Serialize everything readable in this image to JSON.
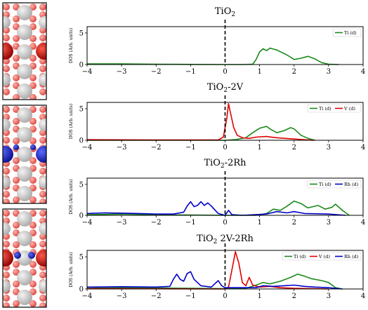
{
  "chart_data": [
    {
      "type": "line",
      "title_main": "TiO",
      "title_sub": "2",
      "title_rest": "",
      "ylabel": "DOS (Arb. units)",
      "xlim": [
        -4,
        4
      ],
      "ylim": [
        0,
        6
      ],
      "xticks": [
        -4,
        -3,
        -2,
        -1,
        0,
        1,
        2,
        3,
        4
      ],
      "yticks": [
        0,
        5
      ],
      "fermi_level": 0,
      "legend_position": "top-right",
      "series": [
        {
          "name": "Ti (d)",
          "color": "#1a8a1a",
          "points": [
            [
              -4,
              0.1
            ],
            [
              -3,
              0.1
            ],
            [
              -2,
              0.05
            ],
            [
              -1,
              0.02
            ],
            [
              0,
              0
            ],
            [
              0.5,
              0
            ],
            [
              0.8,
              0.05
            ],
            [
              0.9,
              0.8
            ],
            [
              1.0,
              2.0
            ],
            [
              1.1,
              2.5
            ],
            [
              1.2,
              2.2
            ],
            [
              1.3,
              2.6
            ],
            [
              1.5,
              2.3
            ],
            [
              1.8,
              1.5
            ],
            [
              2.0,
              0.8
            ],
            [
              2.2,
              1.0
            ],
            [
              2.4,
              1.3
            ],
            [
              2.6,
              0.9
            ],
            [
              2.8,
              0.3
            ],
            [
              3.0,
              0.05
            ],
            [
              3.3,
              0
            ]
          ]
        }
      ]
    },
    {
      "type": "line",
      "title_main": "TiO",
      "title_sub": "2",
      "title_rest": "-2V",
      "ylabel": "DOS (Arb. units)",
      "xlim": [
        -4,
        4
      ],
      "ylim": [
        0,
        6
      ],
      "xticks": [
        -4,
        -3,
        -2,
        -1,
        0,
        1,
        2,
        3,
        4
      ],
      "yticks": [
        0,
        5
      ],
      "fermi_level": 0,
      "legend_position": "top-right",
      "series": [
        {
          "name": "Ti (d)",
          "color": "#1a8a1a",
          "points": [
            [
              -4,
              0
            ],
            [
              0,
              0
            ],
            [
              0.3,
              0.1
            ],
            [
              0.6,
              0.4
            ],
            [
              0.8,
              1.2
            ],
            [
              1.0,
              1.9
            ],
            [
              1.2,
              2.2
            ],
            [
              1.3,
              1.8
            ],
            [
              1.5,
              1.2
            ],
            [
              1.7,
              1.5
            ],
            [
              1.9,
              2.0
            ],
            [
              2.0,
              1.8
            ],
            [
              2.2,
              0.8
            ],
            [
              2.4,
              0.3
            ],
            [
              2.6,
              0
            ]
          ]
        },
        {
          "name": "V (d)",
          "color": "#e00000",
          "points": [
            [
              -4,
              0.1
            ],
            [
              -2,
              0.05
            ],
            [
              -1,
              0.05
            ],
            [
              -0.2,
              0.05
            ],
            [
              -0.05,
              0.5
            ],
            [
              0.05,
              3.5
            ],
            [
              0.1,
              5.8
            ],
            [
              0.15,
              4.5
            ],
            [
              0.25,
              2.0
            ],
            [
              0.35,
              0.8
            ],
            [
              0.5,
              0.4
            ],
            [
              0.7,
              0.3
            ],
            [
              0.9,
              0.5
            ],
            [
              1.2,
              0.6
            ],
            [
              1.5,
              0.4
            ],
            [
              2.0,
              0.2
            ],
            [
              2.4,
              0.05
            ],
            [
              2.6,
              0
            ]
          ]
        }
      ]
    },
    {
      "type": "line",
      "title_main": "TiO",
      "title_sub": "2",
      "title_rest": "-2Rh",
      "ylabel": "DOS (Arb. units)",
      "xlim": [
        -4,
        4
      ],
      "ylim": [
        0,
        6
      ],
      "xticks": [
        -4,
        -3,
        -2,
        -1,
        0,
        1,
        2,
        3,
        4
      ],
      "yticks": [
        0,
        5
      ],
      "fermi_level": 0,
      "legend_position": "top-right",
      "series": [
        {
          "name": "Ti (d)",
          "color": "#1a8a1a",
          "points": [
            [
              -4,
              0.1
            ],
            [
              -3,
              0.2
            ],
            [
              -2,
              0.1
            ],
            [
              -1,
              0.05
            ],
            [
              0,
              0
            ],
            [
              0.9,
              0
            ],
            [
              1.2,
              0.3
            ],
            [
              1.4,
              1.0
            ],
            [
              1.6,
              0.8
            ],
            [
              1.8,
              1.5
            ],
            [
              2.0,
              2.3
            ],
            [
              2.2,
              1.9
            ],
            [
              2.4,
              1.2
            ],
            [
              2.7,
              1.6
            ],
            [
              2.9,
              1.0
            ],
            [
              3.1,
              1.3
            ],
            [
              3.2,
              1.8
            ],
            [
              3.4,
              0.8
            ],
            [
              3.6,
              0
            ]
          ]
        },
        {
          "name": "Rh (d)",
          "color": "#0000c8",
          "points": [
            [
              -4,
              0.3
            ],
            [
              -3.5,
              0.4
            ],
            [
              -3,
              0.35
            ],
            [
              -2.5,
              0.3
            ],
            [
              -2,
              0.2
            ],
            [
              -1.5,
              0.2
            ],
            [
              -1.2,
              0.5
            ],
            [
              -1.1,
              1.5
            ],
            [
              -1.0,
              2.2
            ],
            [
              -0.9,
              1.4
            ],
            [
              -0.8,
              1.6
            ],
            [
              -0.7,
              2.2
            ],
            [
              -0.6,
              1.6
            ],
            [
              -0.5,
              2.0
            ],
            [
              -0.4,
              1.5
            ],
            [
              -0.2,
              0.3
            ],
            [
              0,
              0
            ],
            [
              0.1,
              0.8
            ],
            [
              0.2,
              0.1
            ],
            [
              0.5,
              0
            ],
            [
              1.2,
              0.2
            ],
            [
              1.5,
              0.6
            ],
            [
              1.8,
              0.4
            ],
            [
              2.0,
              0.6
            ],
            [
              2.3,
              0.3
            ],
            [
              3.0,
              0.2
            ],
            [
              3.5,
              0
            ]
          ]
        }
      ]
    },
    {
      "type": "line",
      "title_main": "TiO",
      "title_sub": "2",
      "title_rest": " 2V-2Rh",
      "ylabel": "DOS (Arb. units)",
      "xlim": [
        -4,
        4
      ],
      "ylim": [
        0,
        6
      ],
      "xticks": [
        -4,
        -3,
        -2,
        -1,
        0,
        1,
        2,
        3,
        4
      ],
      "yticks": [
        0,
        5
      ],
      "fermi_level": 0,
      "legend_position": "top-right",
      "series": [
        {
          "name": "Ti (d)",
          "color": "#1a8a1a",
          "points": [
            [
              -4,
              0.1
            ],
            [
              -3,
              0.2
            ],
            [
              -2,
              0.15
            ],
            [
              -1,
              0.1
            ],
            [
              0,
              0.05
            ],
            [
              0.6,
              0.1
            ],
            [
              0.9,
              0.6
            ],
            [
              1.1,
              1.0
            ],
            [
              1.3,
              0.8
            ],
            [
              1.6,
              1.2
            ],
            [
              1.9,
              1.8
            ],
            [
              2.1,
              2.3
            ],
            [
              2.3,
              2.0
            ],
            [
              2.5,
              1.6
            ],
            [
              2.8,
              1.3
            ],
            [
              3.0,
              1.0
            ],
            [
              3.2,
              0.2
            ],
            [
              3.4,
              0
            ]
          ]
        },
        {
          "name": "V (d)",
          "color": "#e00000",
          "points": [
            [
              -4,
              0.05
            ],
            [
              0,
              0
            ],
            [
              0.1,
              0.3
            ],
            [
              0.2,
              3.0
            ],
            [
              0.3,
              5.8
            ],
            [
              0.4,
              4.0
            ],
            [
              0.5,
              1.0
            ],
            [
              0.6,
              0.5
            ],
            [
              0.7,
              1.8
            ],
            [
              0.8,
              0.6
            ],
            [
              1.0,
              0.3
            ],
            [
              1.3,
              0.4
            ],
            [
              1.6,
              0.2
            ],
            [
              2.0,
              0.1
            ],
            [
              2.5,
              0.05
            ],
            [
              3.0,
              0
            ]
          ]
        },
        {
          "name": "Rh (d)",
          "color": "#0000c8",
          "points": [
            [
              -4,
              0.3
            ],
            [
              -3,
              0.35
            ],
            [
              -2,
              0.3
            ],
            [
              -1.6,
              0.4
            ],
            [
              -1.5,
              1.5
            ],
            [
              -1.4,
              2.3
            ],
            [
              -1.3,
              1.5
            ],
            [
              -1.2,
              1.2
            ],
            [
              -1.1,
              2.4
            ],
            [
              -1.0,
              2.7
            ],
            [
              -0.9,
              1.5
            ],
            [
              -0.7,
              0.5
            ],
            [
              -0.4,
              0.3
            ],
            [
              -0.2,
              1.3
            ],
            [
              -0.1,
              0.5
            ],
            [
              0,
              0.2
            ],
            [
              0.3,
              0.2
            ],
            [
              0.9,
              0.2
            ],
            [
              1.1,
              0.5
            ],
            [
              1.4,
              0.4
            ],
            [
              1.7,
              0.5
            ],
            [
              2.0,
              0.6
            ],
            [
              2.3,
              0.4
            ],
            [
              2.6,
              0.3
            ],
            [
              3.0,
              0.2
            ],
            [
              3.4,
              0
            ]
          ]
        }
      ]
    }
  ],
  "structure_images": [
    {
      "name": "tio2-structure",
      "dopant_color": "#cc0000"
    },
    {
      "name": "tio2-2v-structure",
      "dopant_color": "#0a1ec8"
    },
    {
      "name": "tio2-2v-2rh-structure",
      "dopant_color": "#cc0000"
    }
  ]
}
